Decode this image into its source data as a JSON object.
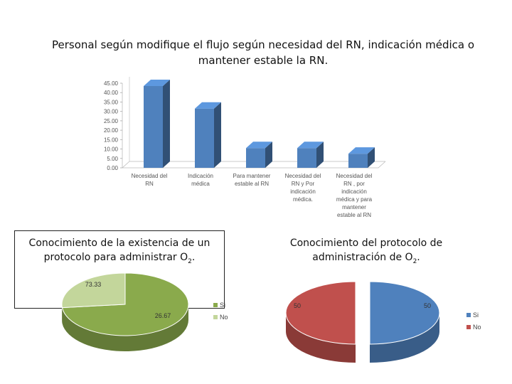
{
  "title_line1": "Personal según modifique el flujo según necesidad del RN, indicación médica o",
  "title_line2": "mantener estable la RN.",
  "chart_data": [
    {
      "type": "bar",
      "categories": [
        [
          "Necesidad del",
          "RN"
        ],
        [
          "Indicación",
          "médica"
        ],
        [
          "Para mantener",
          "estable al RN"
        ],
        [
          "Necesidad del",
          "RN y Por",
          "indicación",
          "médica."
        ],
        [
          "Necesidad del",
          "RN , por",
          "indicación",
          "médica y para",
          "mantener",
          "estable al RN"
        ]
      ],
      "values": [
        43.5,
        31.5,
        10.5,
        10.5,
        7.5
      ],
      "y_ticks": [
        "0.00",
        "5.00",
        "10.00",
        "15.00",
        "20.00",
        "25.00",
        "30.00",
        "35.00",
        "40.00",
        "45.00"
      ],
      "ylim": [
        0,
        45
      ],
      "color": "#4F81BD"
    },
    {
      "type": "pie",
      "title_line1": "Conocimiento de  la existencia de un",
      "title_line2": "protocolo para administrar O",
      "title_sub": "2",
      "title_end": ".",
      "slices": [
        {
          "label": "Si",
          "value": 73.33,
          "value_label": "73.33",
          "color": "#8AAA4C"
        },
        {
          "label": "No",
          "value": 26.67,
          "value_label": "26.67",
          "color": "#C3D69B"
        }
      ]
    },
    {
      "type": "pie",
      "title_line1": "Conocimiento del protocolo de",
      "title_line2": "administración de O",
      "title_sub": "2",
      "title_end": ".",
      "slices": [
        {
          "label": "Si",
          "value": 50,
          "value_label": "50",
          "color": "#4F81BD"
        },
        {
          "label": "No",
          "value": 50,
          "value_label": "50",
          "color": "#C0504D"
        }
      ]
    }
  ]
}
